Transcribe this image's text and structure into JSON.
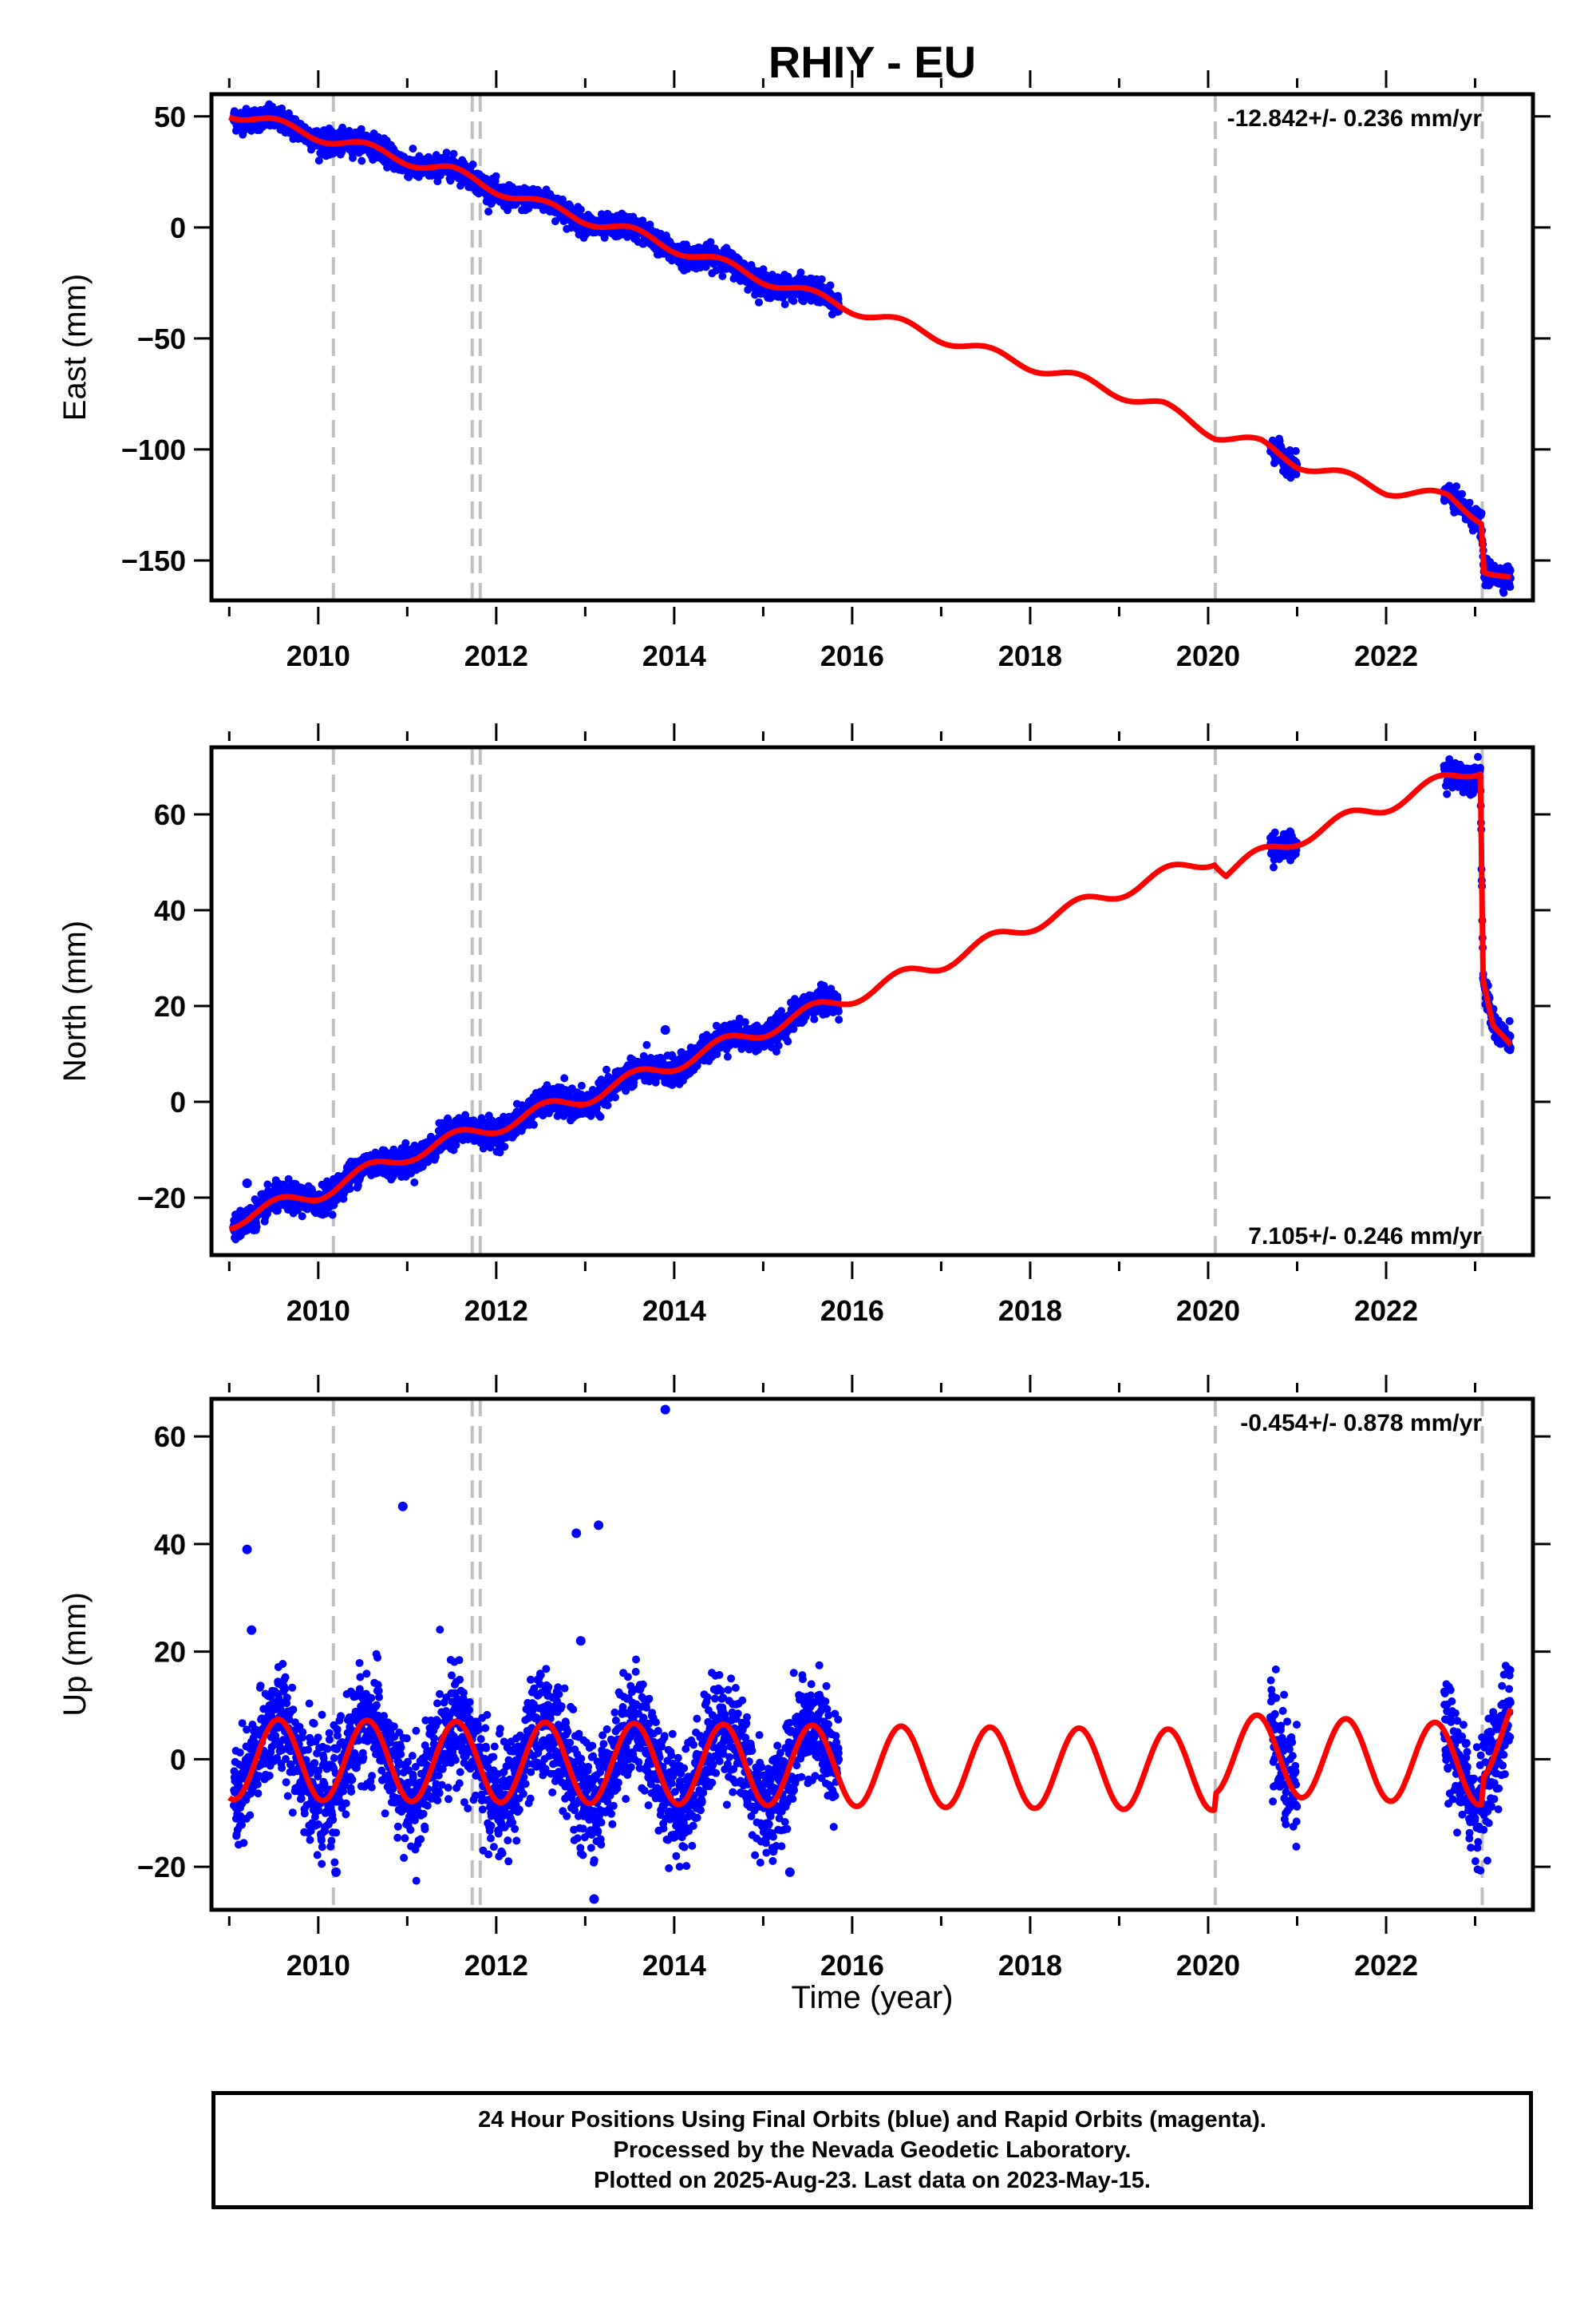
{
  "title": "RHIY - EU",
  "xlabel": "Time (year)",
  "footer": {
    "line1": "24 Hour Positions Using Final Orbits (blue) and Rapid Orbits (magenta).",
    "line2": "Processed by the Nevada Geodetic Laboratory.",
    "line3": "Plotted on 2025-Aug-23. Last data on 2023-May-15."
  },
  "colors": {
    "data_points": "#0000ff",
    "model_line": "#ff0000",
    "event_lines": "#c0c0c0",
    "frame": "#000000"
  },
  "chart_data": [
    {
      "type": "scatter",
      "ylabel": "East (mm)",
      "rate_text": "-12.842+/- 0.236 mm/yr",
      "rate_position": "top-right",
      "xlim": [
        2008.8,
        2023.65
      ],
      "ylim": [
        -168,
        60
      ],
      "xticks": [
        2010,
        2012,
        2014,
        2016,
        2018,
        2020,
        2022
      ],
      "yticks": [
        50,
        0,
        -50,
        -100,
        -150
      ],
      "ytick_labels": [
        "50",
        "0",
        "−50",
        "−100",
        "−150"
      ],
      "event_lines": [
        2010.17,
        2011.73,
        2011.82,
        2020.08,
        2023.08
      ],
      "data_segments": [
        [
          2009.05,
          2015.85
        ],
        [
          2020.7,
          2021.0
        ],
        [
          2022.65,
          2023.4
        ]
      ],
      "model": {
        "anchors": [
          [
            2009.0,
            52
          ],
          [
            2010.5,
            36
          ],
          [
            2011.5,
            25
          ],
          [
            2012.5,
            10
          ],
          [
            2013.5,
            -2
          ],
          [
            2014.5,
            -16
          ],
          [
            2015.5,
            -30
          ],
          [
            2016.5,
            -43
          ],
          [
            2017.5,
            -56
          ],
          [
            2018.5,
            -68
          ],
          [
            2019.5,
            -81
          ],
          [
            2020.08,
            -93
          ],
          [
            2020.6,
            -98
          ],
          [
            2021.0,
            -106
          ],
          [
            2022.0,
            -118
          ],
          [
            2022.7,
            -122
          ],
          [
            2023.07,
            -131
          ],
          [
            2023.1,
            -153
          ],
          [
            2023.4,
            -159
          ]
        ],
        "seasonal_amp": 2.5
      },
      "scatter": {
        "noise": 2.5,
        "outliers": []
      }
    },
    {
      "type": "scatter",
      "ylabel": "North (mm)",
      "rate_text": "7.105+/- 0.246 mm/yr",
      "rate_position": "bottom-right",
      "xlim": [
        2008.8,
        2023.65
      ],
      "ylim": [
        -32,
        74
      ],
      "xticks": [
        2010,
        2012,
        2014,
        2016,
        2018,
        2020,
        2022
      ],
      "yticks": [
        60,
        40,
        20,
        0,
        -20
      ],
      "ytick_labels": [
        "60",
        "40",
        "20",
        "0",
        "−20"
      ],
      "event_lines": [
        2010.17,
        2011.73,
        2011.82,
        2020.08,
        2023.08
      ],
      "data_segments": [
        [
          2009.05,
          2015.85
        ],
        [
          2020.7,
          2021.0
        ],
        [
          2022.65,
          2023.4
        ]
      ],
      "model": {
        "anchors": [
          [
            2009.0,
            -25
          ],
          [
            2010.0,
            -19
          ],
          [
            2011.0,
            -11
          ],
          [
            2012.0,
            -5
          ],
          [
            2013.0,
            1
          ],
          [
            2014.0,
            8
          ],
          [
            2015.0,
            15
          ],
          [
            2016.0,
            22
          ],
          [
            2017.0,
            29
          ],
          [
            2018.0,
            37
          ],
          [
            2019.0,
            44
          ],
          [
            2020.07,
            51
          ],
          [
            2020.2,
            48
          ],
          [
            2021.0,
            55
          ],
          [
            2022.0,
            62
          ],
          [
            2023.06,
            70
          ],
          [
            2023.09,
            27
          ],
          [
            2023.2,
            17
          ],
          [
            2023.4,
            11
          ]
        ],
        "seasonal_amp": 1.6
      },
      "scatter": {
        "noise": 1.4,
        "outliers": [
          [
            2009.2,
            -17
          ],
          [
            2013.9,
            15
          ]
        ]
      }
    },
    {
      "type": "scatter",
      "ylabel": "Up (mm)",
      "rate_text": "-0.454+/- 0.878 mm/yr",
      "rate_position": "top-right",
      "xlim": [
        2008.8,
        2023.65
      ],
      "ylim": [
        -28,
        67
      ],
      "xticks": [
        2010,
        2012,
        2014,
        2016,
        2018,
        2020,
        2022
      ],
      "yticks": [
        60,
        40,
        20,
        0,
        -20
      ],
      "ytick_labels": [
        "60",
        "40",
        "20",
        "0",
        "−20"
      ],
      "event_lines": [
        2010.17,
        2011.73,
        2011.82,
        2020.08,
        2023.08
      ],
      "data_segments": [
        [
          2009.05,
          2015.85
        ],
        [
          2020.7,
          2021.0
        ],
        [
          2022.65,
          2023.4
        ]
      ],
      "model": {
        "anchors": [
          [
            2009.0,
            0
          ],
          [
            2020.07,
            -2
          ],
          [
            2020.09,
            1
          ],
          [
            2023.07,
            -1
          ],
          [
            2023.1,
            4
          ],
          [
            2023.4,
            5
          ]
        ],
        "seasonal_amp": 7.5
      },
      "scatter": {
        "noise": 5.0,
        "outliers": [
          [
            2009.2,
            39
          ],
          [
            2009.25,
            24
          ],
          [
            2010.95,
            47
          ],
          [
            2012.9,
            42
          ],
          [
            2012.95,
            22
          ],
          [
            2013.15,
            43.5
          ],
          [
            2013.9,
            65
          ],
          [
            2013.1,
            -26
          ],
          [
            2015.3,
            -21
          ],
          [
            2010.2,
            -21
          ]
        ]
      }
    }
  ]
}
